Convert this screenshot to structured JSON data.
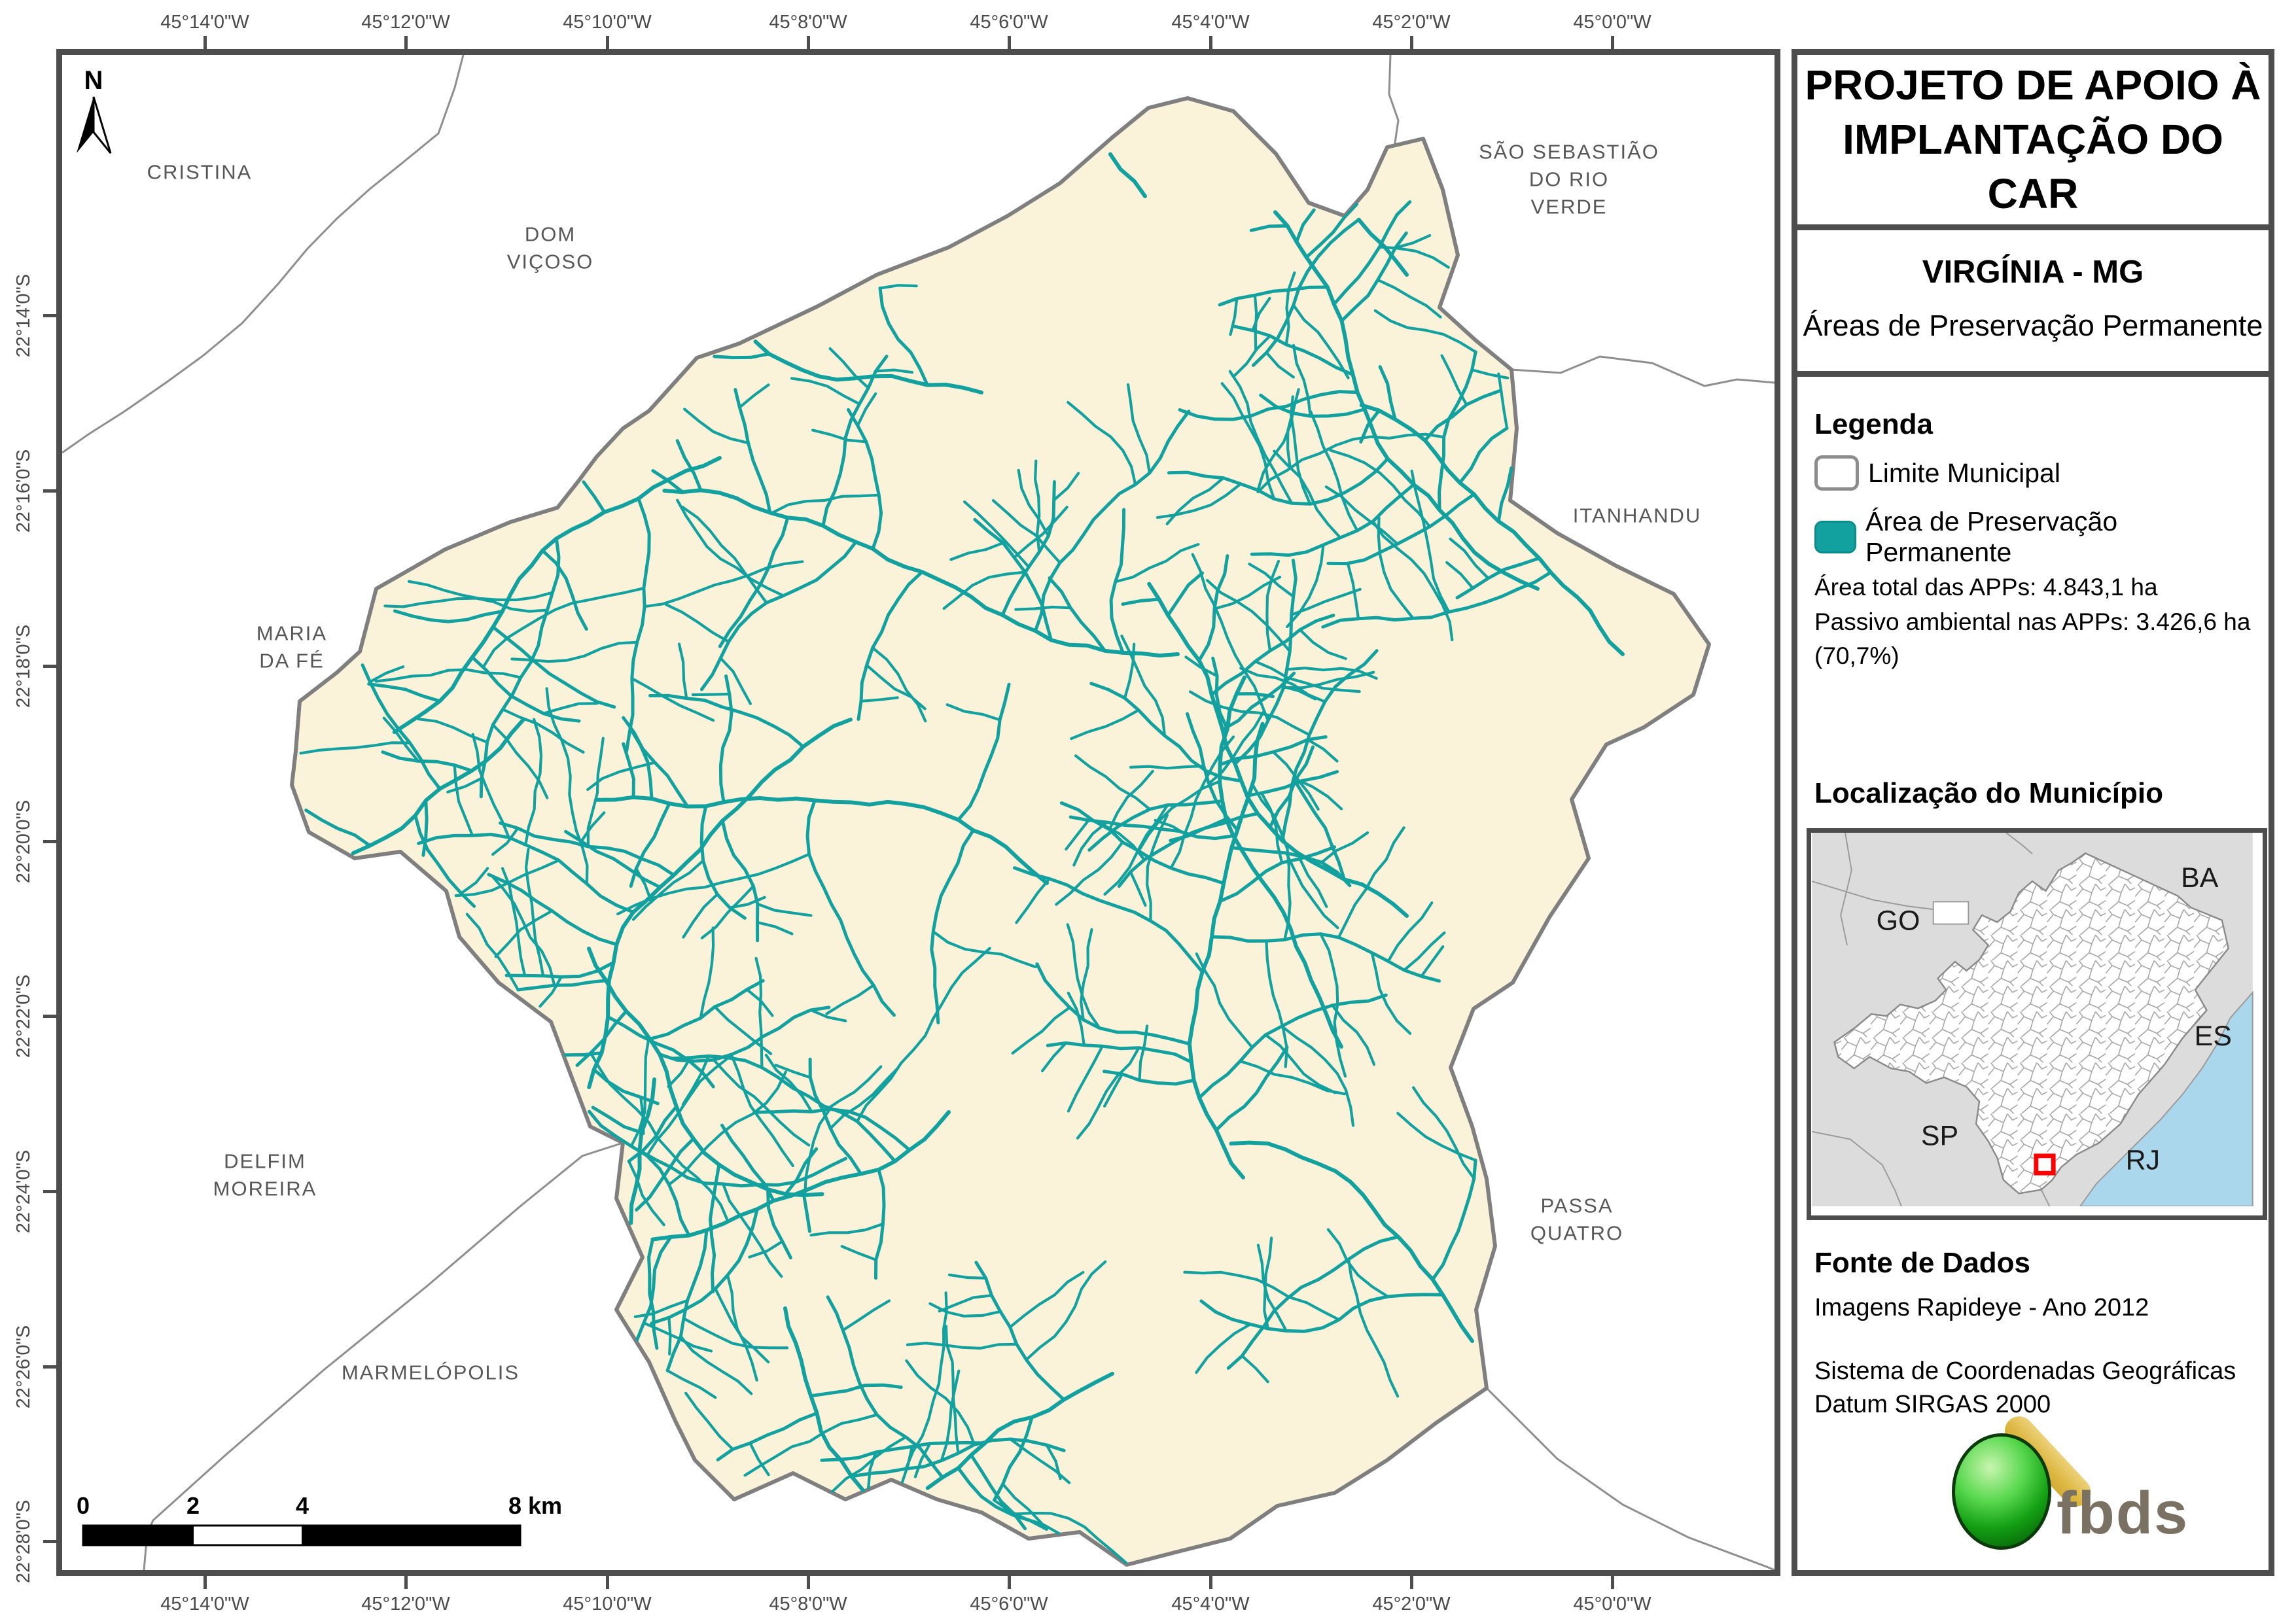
{
  "map": {
    "north_label": "N",
    "longitude_labels": [
      "45°14'0\"W",
      "45°12'0\"W",
      "45°10'0\"W",
      "45°8'0\"W",
      "45°6'0\"W",
      "45°4'0\"W",
      "45°2'0\"W",
      "45°0'0\"W"
    ],
    "latitude_labels": [
      "22°14'0\"S",
      "22°16'0\"S",
      "22°18'0\"S",
      "22°20'0\"S",
      "22°22'0\"S",
      "22°24'0\"S",
      "22°26'0\"S",
      "22°28'0\"S"
    ],
    "place_labels": [
      {
        "name": "cristina",
        "lines": [
          "CRISTINA"
        ]
      },
      {
        "name": "dom-vicoso",
        "lines": [
          "DOM",
          "VIÇOSO"
        ]
      },
      {
        "name": "sao-sebastiao-do-rio-verde",
        "lines": [
          "SÃO SEBASTIÃO",
          "DO RIO",
          "VERDE"
        ]
      },
      {
        "name": "itanhandu",
        "lines": [
          "ITANHANDU"
        ]
      },
      {
        "name": "maria-da-fe",
        "lines": [
          "MARIA",
          "DA FÉ"
        ]
      },
      {
        "name": "delfim-moreira",
        "lines": [
          "DELFIM",
          "MOREIRA"
        ]
      },
      {
        "name": "marmelopolis",
        "lines": [
          "MARMELÓPOLIS"
        ]
      },
      {
        "name": "passa-quatro",
        "lines": [
          "PASSA",
          "QUATRO"
        ]
      }
    ],
    "scale_bar": {
      "tick_labels": [
        "0",
        "2",
        "4",
        "8 km"
      ]
    },
    "colors": {
      "app_river": "#12A19F",
      "municipality_fill": "#FAF3DA",
      "municipality_border": "#7F7F7F",
      "neighbor_border": "#8E8E8E",
      "frame": "#4D4D4D",
      "place_label": "#575757"
    }
  },
  "panel": {
    "title_line1": "PROJETO DE APOIO À",
    "title_line2": "IMPLANTAÇÃO DO CAR",
    "municipality": "VIRGÍNIA - MG",
    "subtitle": "Áreas de Preservação Permanente",
    "legend": {
      "heading": "Legenda",
      "items": [
        {
          "label": "Limite Municipal",
          "swatch": "white"
        },
        {
          "label": "Área de Preservação Permanente",
          "swatch": "teal"
        }
      ]
    },
    "stats": [
      "Área total das APPs: 4.843,1 ha",
      "Passivo ambiental nas APPs: 3.426,6 ha (70,7%)"
    ],
    "location": {
      "heading": "Localização do Município",
      "state_labels": [
        "GO",
        "BA",
        "ES",
        "SP",
        "RJ"
      ],
      "marker_color": "#FF0000",
      "ocean_color": "#ABD7EC"
    },
    "source": {
      "heading": "Fonte de Dados",
      "lines": [
        "Imagens Rapideye - Ano 2012",
        "Sistema de Coordenadas Geográficas",
        "Datum SIRGAS 2000"
      ]
    },
    "logo_text": "fbds"
  }
}
